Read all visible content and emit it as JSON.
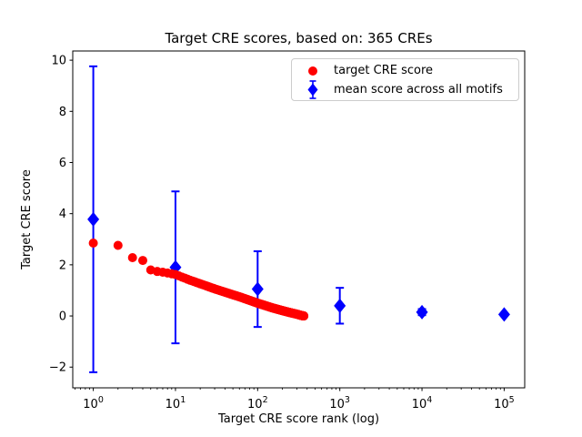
{
  "chart_data": {
    "type": "scatter",
    "title": "Target CRE scores, based on: 365 CREs",
    "xlabel": "Target CRE score rank (log)",
    "ylabel": "Target CRE score",
    "x_scale": "log",
    "x_tick_exponents": [
      0,
      1,
      2,
      3,
      4,
      5
    ],
    "y_tick_values": [
      -2,
      0,
      2,
      4,
      6,
      8,
      10
    ],
    "y_tick_labels": [
      "−2",
      "0",
      "2",
      "4",
      "6",
      "8",
      "10"
    ],
    "x_decade_lim": [
      -0.25,
      5.25
    ],
    "y_lim": [
      -2.81,
      10.36
    ],
    "grid": false,
    "legend_position": "upper right",
    "colors": {
      "target_series": "#ff0000",
      "mean_series": "#0000ff",
      "axis": "#000000",
      "legend_border": "#cccccc"
    },
    "series": [
      {
        "name": "target CRE score",
        "type": "scatter",
        "marker": "circle",
        "color": "#ff0000",
        "n_points": 365,
        "note": "365 dots at ranks 1..365; scores read from plot; intermediate ranks log-linearly interpolated from anchors",
        "anchors": {
          "rank": [
            1,
            2,
            3,
            4,
            5,
            6,
            7,
            8,
            10,
            12,
            15,
            20,
            25,
            30,
            40,
            50,
            60,
            80,
            100,
            120,
            150,
            200,
            250,
            300,
            340,
            365
          ],
          "score": [
            2.85,
            2.76,
            2.28,
            2.17,
            1.8,
            1.74,
            1.71,
            1.68,
            1.62,
            1.52,
            1.4,
            1.26,
            1.15,
            1.06,
            0.93,
            0.83,
            0.75,
            0.61,
            0.5,
            0.42,
            0.32,
            0.21,
            0.13,
            0.07,
            0.02,
            0.0
          ]
        }
      },
      {
        "name": "mean score across all motifs",
        "type": "errorbar",
        "marker": "diamond",
        "color": "#0000ff",
        "x": [
          1,
          10,
          100,
          1000,
          10000,
          100000
        ],
        "mean": [
          3.78,
          1.9,
          1.05,
          0.4,
          0.15,
          0.06
        ],
        "err": [
          5.98,
          2.97,
          1.48,
          0.7,
          0.12,
          0.05
        ]
      }
    ]
  }
}
